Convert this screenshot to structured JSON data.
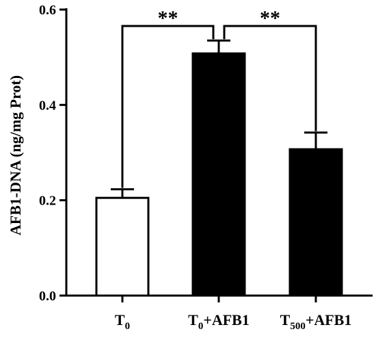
{
  "chart_data": {
    "type": "bar",
    "ylabel": "AFB1-DNA (ng/mg Prot)",
    "xlabel": "",
    "title": "",
    "ylim": [
      0,
      0.6
    ],
    "yticks": [
      {
        "value": 0.0,
        "label": "0.0"
      },
      {
        "value": 0.2,
        "label": "0.2"
      },
      {
        "value": 0.4,
        "label": "0.4"
      },
      {
        "value": 0.6,
        "label": "0.6"
      }
    ],
    "categories": [
      {
        "base": "T",
        "sub": "0",
        "suffix": ""
      },
      {
        "base": "T",
        "sub": "0",
        "suffix": "+AFB1"
      },
      {
        "base": "T",
        "sub": "500",
        "suffix": "+AFB1"
      }
    ],
    "values": [
      0.205,
      0.508,
      0.307
    ],
    "errors": [
      0.018,
      0.027,
      0.035
    ],
    "bar_fills": [
      "#ffffff",
      "#000000",
      "#000000"
    ],
    "significance": [
      {
        "from": 0,
        "to": 1,
        "label": "**"
      },
      {
        "from": 1,
        "to": 2,
        "label": "**"
      }
    ],
    "grid": false,
    "legend": "none"
  }
}
